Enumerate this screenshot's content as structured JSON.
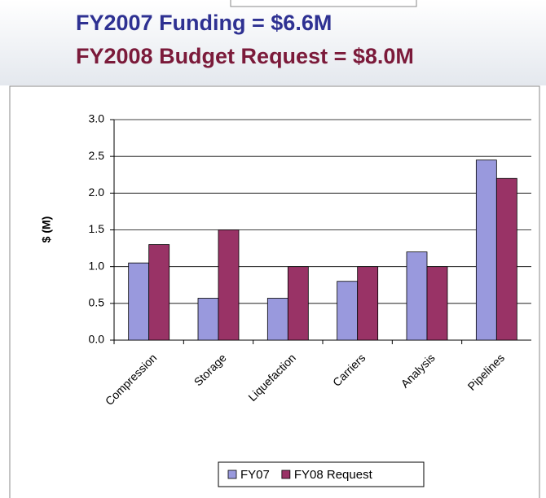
{
  "chart_data": {
    "type": "bar",
    "title": "FY2007 Funding = $6.6M",
    "subtitle": "FY2008 Budget Request = $8.0M",
    "y_label": "$ (M)",
    "categories": [
      "Compression",
      "Storage",
      "Liquefaction",
      "Carriers",
      "Analysis",
      "Pipelines"
    ],
    "series": [
      {
        "name": "FY07",
        "color": "#9999dd",
        "values": [
          1.05,
          0.57,
          0.57,
          0.8,
          1.2,
          2.45
        ]
      },
      {
        "name": "FY08 Request",
        "color": "#993366",
        "values": [
          1.3,
          1.5,
          1.0,
          1.0,
          1.0,
          2.2
        ]
      }
    ],
    "ylim": [
      0,
      3
    ],
    "yticks": [
      {
        "value": 0,
        "label": "0.0"
      },
      0.5,
      {
        "value": 1,
        "label": "1.0"
      },
      1.5,
      {
        "value": 2,
        "label": "2.0"
      },
      2.5,
      {
        "value": 3,
        "label": "3.0"
      }
    ],
    "grid": true,
    "legend": "bottom"
  }
}
